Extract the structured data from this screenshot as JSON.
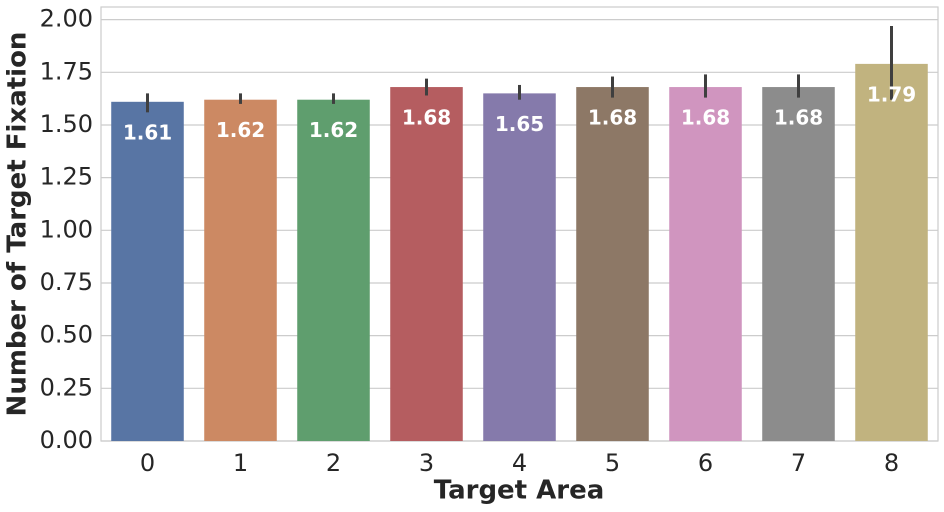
{
  "chart_data": {
    "type": "bar",
    "xlabel": "Target Area",
    "ylabel": "Number of Target Fixation",
    "categories": [
      "0",
      "1",
      "2",
      "3",
      "4",
      "5",
      "6",
      "7",
      "8"
    ],
    "values": [
      1.61,
      1.62,
      1.62,
      1.68,
      1.65,
      1.68,
      1.68,
      1.68,
      1.79
    ],
    "errors": [
      [
        1.56,
        1.65
      ],
      [
        1.6,
        1.65
      ],
      [
        1.6,
        1.65
      ],
      [
        1.64,
        1.72
      ],
      [
        1.62,
        1.69
      ],
      [
        1.63,
        1.73
      ],
      [
        1.63,
        1.74
      ],
      [
        1.63,
        1.74
      ],
      [
        1.62,
        1.97
      ]
    ],
    "colors": [
      "#5875a4",
      "#cc8963",
      "#5f9e6e",
      "#b55d60",
      "#857aab",
      "#8d7866",
      "#d095bf",
      "#8c8c8c",
      "#c1b37f"
    ],
    "ylim": [
      0,
      2.06
    ],
    "yticks": [
      {
        "value": 0,
        "label": "0.00"
      },
      {
        "value": 0.25,
        "label": "0.25"
      },
      {
        "value": 0.5,
        "label": "0.50"
      },
      {
        "value": 0.75,
        "label": "0.75"
      },
      {
        "value": 1,
        "label": "1.00"
      },
      {
        "value": 1.25,
        "label": "1.25"
      },
      {
        "value": 1.5,
        "label": "1.50"
      },
      {
        "value": 1.75,
        "label": "1.75"
      },
      {
        "value": 2,
        "label": "2.00"
      }
    ],
    "grid": true
  }
}
